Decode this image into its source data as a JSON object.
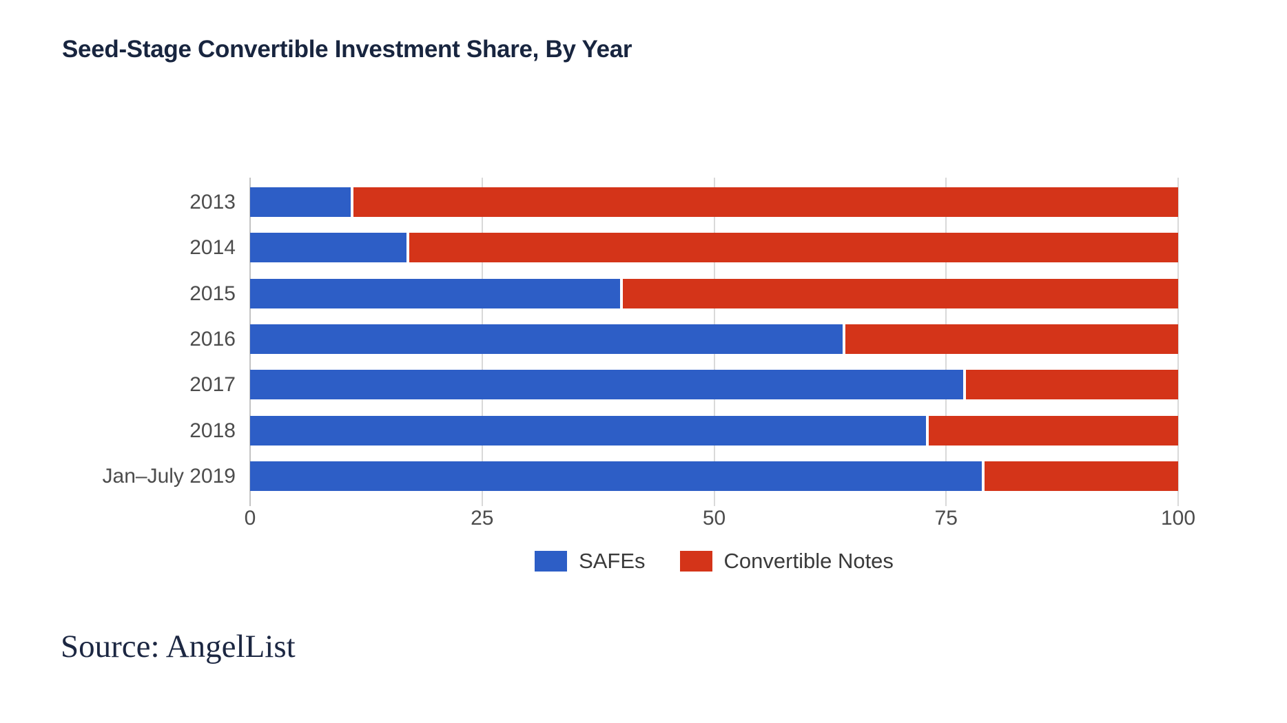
{
  "title": "Seed-Stage Convertible Investment Share, By Year",
  "source": "Source: AngelList",
  "legend": {
    "position": "bottom-center",
    "items": [
      {
        "label": "SAFEs",
        "color": "#2d5ec6"
      },
      {
        "label": "Convertible Notes",
        "color": "#d43419"
      }
    ]
  },
  "colors": {
    "safes_blue": "#2d5ec6",
    "notes_red": "#d43419",
    "gridline": "#d9d9d9",
    "axis_line": "#c3c3c3",
    "axis_text": "#4c4c4c",
    "title_navy": "#18253f"
  },
  "chart_data": {
    "type": "bar",
    "orientation": "horizontal",
    "stacked": true,
    "title": "Seed-Stage Convertible Investment Share, By Year",
    "categories": [
      "2013",
      "2014",
      "2015",
      "2016",
      "2017",
      "2018",
      "Jan–July 2019"
    ],
    "series": [
      {
        "name": "SAFEs",
        "color": "#2d5ec6",
        "values": [
          11,
          17,
          40,
          64,
          77,
          73,
          79
        ]
      },
      {
        "name": "Convertible Notes",
        "color": "#d43419",
        "values": [
          89,
          83,
          60,
          36,
          23,
          27,
          21
        ]
      }
    ],
    "x_ticks": [
      0,
      25,
      50,
      75,
      100
    ],
    "xlim": [
      0,
      100
    ],
    "xlabel": "",
    "ylabel": "",
    "grid": "vertical",
    "legend_position": "bottom-center",
    "source": "Source: AngelList"
  }
}
